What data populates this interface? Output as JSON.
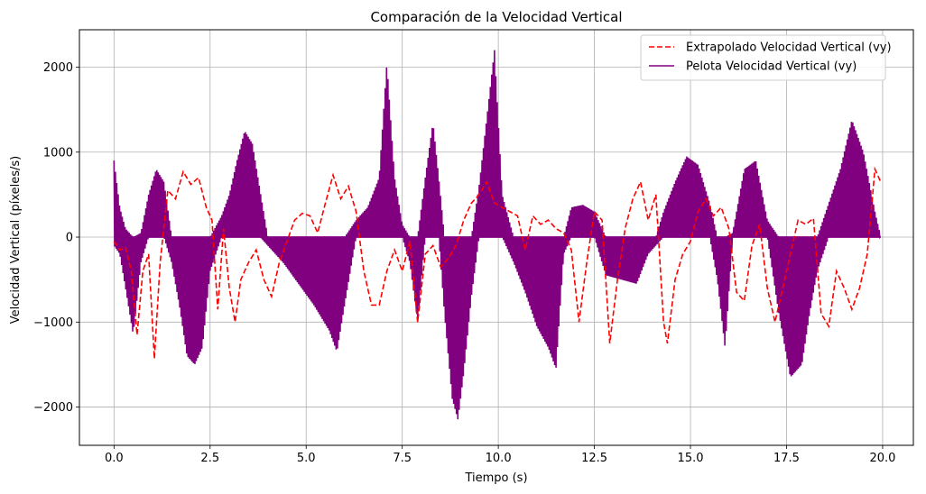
{
  "chart_data": {
    "type": "line",
    "title": "Comparación de la Velocidad Vertical",
    "xlabel": "Tiempo (s)",
    "ylabel": "Velocidad Vertical (píxeles/s)",
    "xlim": [
      -0.9,
      20.8
    ],
    "ylim": [
      -2450,
      2440
    ],
    "xticks": [
      0.0,
      2.5,
      5.0,
      7.5,
      10.0,
      12.5,
      15.0,
      17.5,
      20.0
    ],
    "xtick_labels": [
      "0.0",
      "2.5",
      "5.0",
      "7.5",
      "10.0",
      "12.5",
      "15.0",
      "17.5",
      "20.0"
    ],
    "yticks": [
      -2000,
      -1000,
      0,
      1000,
      2000
    ],
    "ytick_labels": [
      "−2000",
      "−1000",
      "0",
      "1000",
      "2000"
    ],
    "grid": true,
    "legend": "top-right",
    "series": [
      {
        "name": "Extrapolado Velocidad Vertical (vy)",
        "color": "#ff0000",
        "style": "dashed",
        "points": [
          [
            0.0,
            -50
          ],
          [
            0.15,
            -150
          ],
          [
            0.3,
            -120
          ],
          [
            0.45,
            -400
          ],
          [
            0.6,
            -1150
          ],
          [
            0.75,
            -400
          ],
          [
            0.9,
            -200
          ],
          [
            1.05,
            -1430
          ],
          [
            1.2,
            -300
          ],
          [
            1.4,
            550
          ],
          [
            1.6,
            450
          ],
          [
            1.8,
            770
          ],
          [
            2.0,
            620
          ],
          [
            2.2,
            700
          ],
          [
            2.4,
            350
          ],
          [
            2.55,
            200
          ],
          [
            2.7,
            -850
          ],
          [
            2.85,
            100
          ],
          [
            3.0,
            -600
          ],
          [
            3.15,
            -1000
          ],
          [
            3.3,
            -500
          ],
          [
            3.5,
            -300
          ],
          [
            3.7,
            -150
          ],
          [
            3.9,
            -500
          ],
          [
            4.1,
            -700
          ],
          [
            4.3,
            -300
          ],
          [
            4.5,
            -50
          ],
          [
            4.7,
            200
          ],
          [
            4.9,
            280
          ],
          [
            5.1,
            250
          ],
          [
            5.3,
            50
          ],
          [
            5.5,
            400
          ],
          [
            5.7,
            730
          ],
          [
            5.9,
            450
          ],
          [
            6.1,
            600
          ],
          [
            6.3,
            300
          ],
          [
            6.5,
            -400
          ],
          [
            6.7,
            -800
          ],
          [
            6.9,
            -800
          ],
          [
            7.1,
            -400
          ],
          [
            7.3,
            -150
          ],
          [
            7.5,
            -400
          ],
          [
            7.7,
            -50
          ],
          [
            7.9,
            -1000
          ],
          [
            8.1,
            -200
          ],
          [
            8.3,
            -100
          ],
          [
            8.5,
            -350
          ],
          [
            8.7,
            -250
          ],
          [
            8.9,
            -100
          ],
          [
            9.1,
            200
          ],
          [
            9.3,
            400
          ],
          [
            9.5,
            500
          ],
          [
            9.7,
            650
          ],
          [
            9.9,
            400
          ],
          [
            10.1,
            350
          ],
          [
            10.3,
            300
          ],
          [
            10.5,
            250
          ],
          [
            10.7,
            -150
          ],
          [
            10.9,
            250
          ],
          [
            11.1,
            150
          ],
          [
            11.3,
            200
          ],
          [
            11.5,
            100
          ],
          [
            11.7,
            50
          ],
          [
            11.9,
            -150
          ],
          [
            12.1,
            -1000
          ],
          [
            12.3,
            -300
          ],
          [
            12.5,
            300
          ],
          [
            12.7,
            200
          ],
          [
            12.9,
            -1250
          ],
          [
            13.1,
            -500
          ],
          [
            13.3,
            100
          ],
          [
            13.5,
            450
          ],
          [
            13.7,
            650
          ],
          [
            13.9,
            200
          ],
          [
            14.1,
            500
          ],
          [
            14.3,
            -1000
          ],
          [
            14.4,
            -1250
          ],
          [
            14.6,
            -500
          ],
          [
            14.8,
            -200
          ],
          [
            15.0,
            -50
          ],
          [
            15.2,
            300
          ],
          [
            15.4,
            450
          ],
          [
            15.6,
            250
          ],
          [
            15.8,
            350
          ],
          [
            16.0,
            100
          ],
          [
            16.2,
            -650
          ],
          [
            16.4,
            -750
          ],
          [
            16.6,
            -100
          ],
          [
            16.8,
            150
          ],
          [
            17.0,
            -600
          ],
          [
            17.2,
            -1000
          ],
          [
            17.4,
            -600
          ],
          [
            17.6,
            -200
          ],
          [
            17.8,
            200
          ],
          [
            18.0,
            150
          ],
          [
            18.2,
            220
          ],
          [
            18.4,
            -900
          ],
          [
            18.6,
            -1050
          ],
          [
            18.8,
            -400
          ],
          [
            19.0,
            -600
          ],
          [
            19.2,
            -850
          ],
          [
            19.4,
            -600
          ],
          [
            19.6,
            -200
          ],
          [
            19.8,
            800
          ],
          [
            19.95,
            650
          ]
        ]
      },
      {
        "name": "Pelota Velocidad Vertical (vy)",
        "color": "#800080",
        "style": "solid",
        "envelope": [
          [
            0.0,
            900,
            -100
          ],
          [
            0.15,
            350,
            -200
          ],
          [
            0.3,
            100,
            -600
          ],
          [
            0.5,
            0,
            -1150
          ],
          [
            0.7,
            50,
            -300
          ],
          [
            0.9,
            500,
            0
          ],
          [
            1.1,
            800,
            0
          ],
          [
            1.3,
            650,
            0
          ],
          [
            1.5,
            0,
            -300
          ],
          [
            1.7,
            0,
            -800
          ],
          [
            1.9,
            0,
            -1400
          ],
          [
            2.1,
            0,
            -1500
          ],
          [
            2.3,
            0,
            -1300
          ],
          [
            2.5,
            0,
            -400
          ],
          [
            2.8,
            250,
            0
          ],
          [
            3.0,
            500,
            0
          ],
          [
            3.2,
            900,
            0
          ],
          [
            3.4,
            1250,
            0
          ],
          [
            3.6,
            1100,
            0
          ],
          [
            3.8,
            550,
            0
          ],
          [
            4.0,
            0,
            -100
          ],
          [
            4.4,
            0,
            -300
          ],
          [
            4.8,
            0,
            -550
          ],
          [
            5.2,
            0,
            -800
          ],
          [
            5.6,
            0,
            -1100
          ],
          [
            5.8,
            0,
            -1350
          ],
          [
            6.0,
            0,
            -800
          ],
          [
            6.3,
            200,
            0
          ],
          [
            6.6,
            350,
            0
          ],
          [
            6.9,
            700,
            0
          ],
          [
            7.1,
            2050,
            0
          ],
          [
            7.3,
            700,
            0
          ],
          [
            7.5,
            150,
            0
          ],
          [
            7.7,
            0,
            -300
          ],
          [
            7.9,
            0,
            -1000
          ],
          [
            8.1,
            700,
            0
          ],
          [
            8.3,
            1350,
            0
          ],
          [
            8.45,
            700,
            0
          ],
          [
            8.6,
            0,
            -900
          ],
          [
            8.8,
            0,
            -1900
          ],
          [
            8.95,
            0,
            -2150
          ],
          [
            9.1,
            0,
            -1600
          ],
          [
            9.3,
            0,
            -700
          ],
          [
            9.5,
            600,
            0
          ],
          [
            9.7,
            1400,
            0
          ],
          [
            9.9,
            2200,
            0
          ],
          [
            10.1,
            500,
            0
          ],
          [
            10.4,
            0,
            -300
          ],
          [
            10.7,
            0,
            -650
          ],
          [
            11.0,
            0,
            -1050
          ],
          [
            11.3,
            0,
            -1300
          ],
          [
            11.5,
            0,
            -1550
          ],
          [
            11.7,
            0,
            -200
          ],
          [
            11.9,
            350,
            0
          ],
          [
            12.2,
            380,
            0
          ],
          [
            12.5,
            300,
            0
          ],
          [
            12.8,
            0,
            -450
          ],
          [
            13.2,
            0,
            -500
          ],
          [
            13.6,
            0,
            -550
          ],
          [
            13.9,
            0,
            -200
          ],
          [
            14.1,
            0,
            -100
          ],
          [
            14.3,
            300,
            0
          ],
          [
            14.6,
            650,
            0
          ],
          [
            14.9,
            950,
            0
          ],
          [
            15.2,
            850,
            0
          ],
          [
            15.5,
            400,
            0
          ],
          [
            15.7,
            0,
            -500
          ],
          [
            15.9,
            0,
            -1300
          ],
          [
            16.1,
            50,
            0
          ],
          [
            16.4,
            800,
            0
          ],
          [
            16.7,
            900,
            0
          ],
          [
            17.0,
            200,
            0
          ],
          [
            17.3,
            0,
            -900
          ],
          [
            17.6,
            0,
            -1650
          ],
          [
            17.9,
            0,
            -1500
          ],
          [
            18.1,
            0,
            -900
          ],
          [
            18.3,
            0,
            -400
          ],
          [
            18.6,
            400,
            0
          ],
          [
            18.9,
            800,
            0
          ],
          [
            19.2,
            1380,
            0
          ],
          [
            19.5,
            1000,
            0
          ],
          [
            19.8,
            300,
            0
          ],
          [
            19.95,
            0,
            0
          ]
        ]
      }
    ]
  }
}
